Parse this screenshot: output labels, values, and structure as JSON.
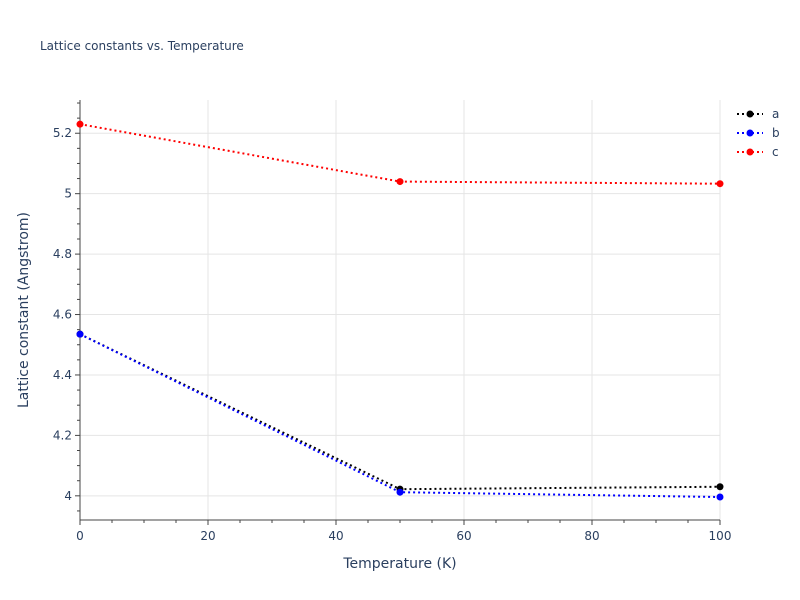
{
  "chart_data": {
    "type": "line",
    "title": "Lattice constants vs. Temperature",
    "xlabel": "Temperature (K)",
    "ylabel": "Lattice constant (Angstrom)",
    "xlim": [
      0,
      100
    ],
    "ylim": [
      3.92,
      5.31
    ],
    "x_ticks": [
      0,
      20,
      40,
      60,
      80,
      100
    ],
    "x_tick_labels": [
      "0",
      "20",
      "40",
      "60",
      "80",
      "100"
    ],
    "y_ticks": [
      4.0,
      4.2,
      4.4,
      4.6,
      4.8,
      5.0,
      5.2
    ],
    "y_tick_labels": [
      "4",
      "4.2",
      "4.4",
      "4.6",
      "4.8",
      "5",
      "5.2"
    ],
    "grid": true,
    "legend_position": "top-right",
    "line_style": "dotted",
    "series": [
      {
        "name": "a",
        "color": "#000000",
        "x": [
          0,
          50,
          100
        ],
        "y": [
          4.535,
          4.022,
          4.03
        ]
      },
      {
        "name": "b",
        "color": "#0000ff",
        "x": [
          0,
          50,
          100
        ],
        "y": [
          4.535,
          4.012,
          3.996
        ]
      },
      {
        "name": "c",
        "color": "#ff0000",
        "x": [
          0,
          50,
          100
        ],
        "y": [
          5.23,
          5.04,
          5.033
        ]
      }
    ]
  }
}
